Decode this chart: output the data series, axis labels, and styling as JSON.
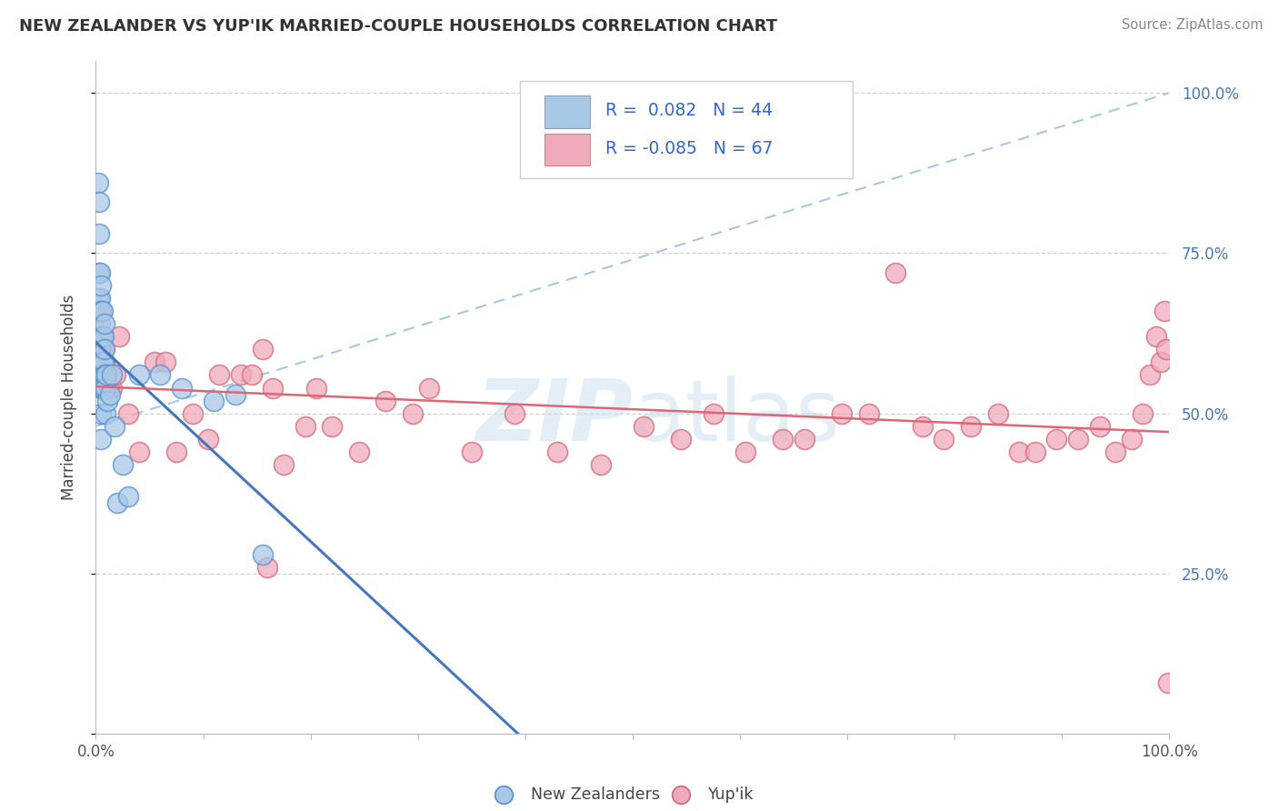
{
  "title": "NEW ZEALANDER VS YUP'IK MARRIED-COUPLE HOUSEHOLDS CORRELATION CHART",
  "source": "Source: ZipAtlas.com",
  "ylabel": "Married-couple Households",
  "legend_label1": "New Zealanders",
  "legend_label2": "Yup'ik",
  "r1": 0.082,
  "n1": 44,
  "r2": -0.085,
  "n2": 67,
  "color_nz_fill": "#a8c8e8",
  "color_nz_edge": "#5590cc",
  "color_nz_line": "#4477bb",
  "color_yk_fill": "#f0aabb",
  "color_yk_edge": "#d06878",
  "color_yk_line": "#dd6677",
  "color_dash": "#99bbdd",
  "watermark_color": "#cce0f0",
  "nz_x": [
    0.002,
    0.003,
    0.003,
    0.003,
    0.003,
    0.003,
    0.004,
    0.004,
    0.004,
    0.004,
    0.004,
    0.005,
    0.005,
    0.005,
    0.005,
    0.005,
    0.005,
    0.005,
    0.006,
    0.006,
    0.006,
    0.006,
    0.007,
    0.007,
    0.007,
    0.008,
    0.008,
    0.008,
    0.009,
    0.009,
    0.01,
    0.011,
    0.013,
    0.015,
    0.017,
    0.02,
    0.025,
    0.03,
    0.04,
    0.06,
    0.08,
    0.11,
    0.13,
    0.155
  ],
  "nz_y": [
    0.86,
    0.83,
    0.78,
    0.72,
    0.68,
    0.62,
    0.72,
    0.68,
    0.64,
    0.6,
    0.56,
    0.7,
    0.66,
    0.62,
    0.58,
    0.54,
    0.5,
    0.46,
    0.66,
    0.62,
    0.58,
    0.54,
    0.62,
    0.58,
    0.54,
    0.64,
    0.6,
    0.56,
    0.54,
    0.5,
    0.56,
    0.52,
    0.53,
    0.56,
    0.48,
    0.36,
    0.42,
    0.37,
    0.56,
    0.56,
    0.54,
    0.52,
    0.53,
    0.28
  ],
  "yk_x": [
    0.003,
    0.004,
    0.004,
    0.005,
    0.005,
    0.006,
    0.006,
    0.007,
    0.008,
    0.009,
    0.01,
    0.012,
    0.015,
    0.018,
    0.022,
    0.03,
    0.04,
    0.055,
    0.065,
    0.075,
    0.09,
    0.105,
    0.115,
    0.135,
    0.145,
    0.155,
    0.165,
    0.175,
    0.195,
    0.205,
    0.22,
    0.245,
    0.27,
    0.295,
    0.31,
    0.35,
    0.39,
    0.43,
    0.47,
    0.51,
    0.545,
    0.575,
    0.605,
    0.64,
    0.66,
    0.695,
    0.72,
    0.745,
    0.77,
    0.79,
    0.815,
    0.84,
    0.86,
    0.875,
    0.895,
    0.915,
    0.935,
    0.95,
    0.965,
    0.975,
    0.982,
    0.988,
    0.992,
    0.995,
    0.997,
    0.999,
    0.16
  ],
  "yk_y": [
    0.62,
    0.66,
    0.6,
    0.66,
    0.6,
    0.62,
    0.56,
    0.6,
    0.58,
    0.54,
    0.56,
    0.54,
    0.54,
    0.56,
    0.62,
    0.5,
    0.44,
    0.58,
    0.58,
    0.44,
    0.5,
    0.46,
    0.56,
    0.56,
    0.56,
    0.6,
    0.54,
    0.42,
    0.48,
    0.54,
    0.48,
    0.44,
    0.52,
    0.5,
    0.54,
    0.44,
    0.5,
    0.44,
    0.42,
    0.48,
    0.46,
    0.5,
    0.44,
    0.46,
    0.46,
    0.5,
    0.5,
    0.72,
    0.48,
    0.46,
    0.48,
    0.5,
    0.44,
    0.44,
    0.46,
    0.46,
    0.48,
    0.44,
    0.46,
    0.5,
    0.56,
    0.62,
    0.58,
    0.66,
    0.6,
    0.08,
    0.26
  ],
  "xtick_positions": [
    0.0,
    0.1,
    0.2,
    0.3,
    0.4,
    0.5,
    0.6,
    0.7,
    0.8,
    0.9,
    1.0
  ],
  "ytick_positions": [
    0.0,
    0.25,
    0.5,
    0.75,
    1.0
  ],
  "ytick_labels": [
    "",
    "25.0%",
    "50.0%",
    "75.0%",
    "100.0%"
  ]
}
